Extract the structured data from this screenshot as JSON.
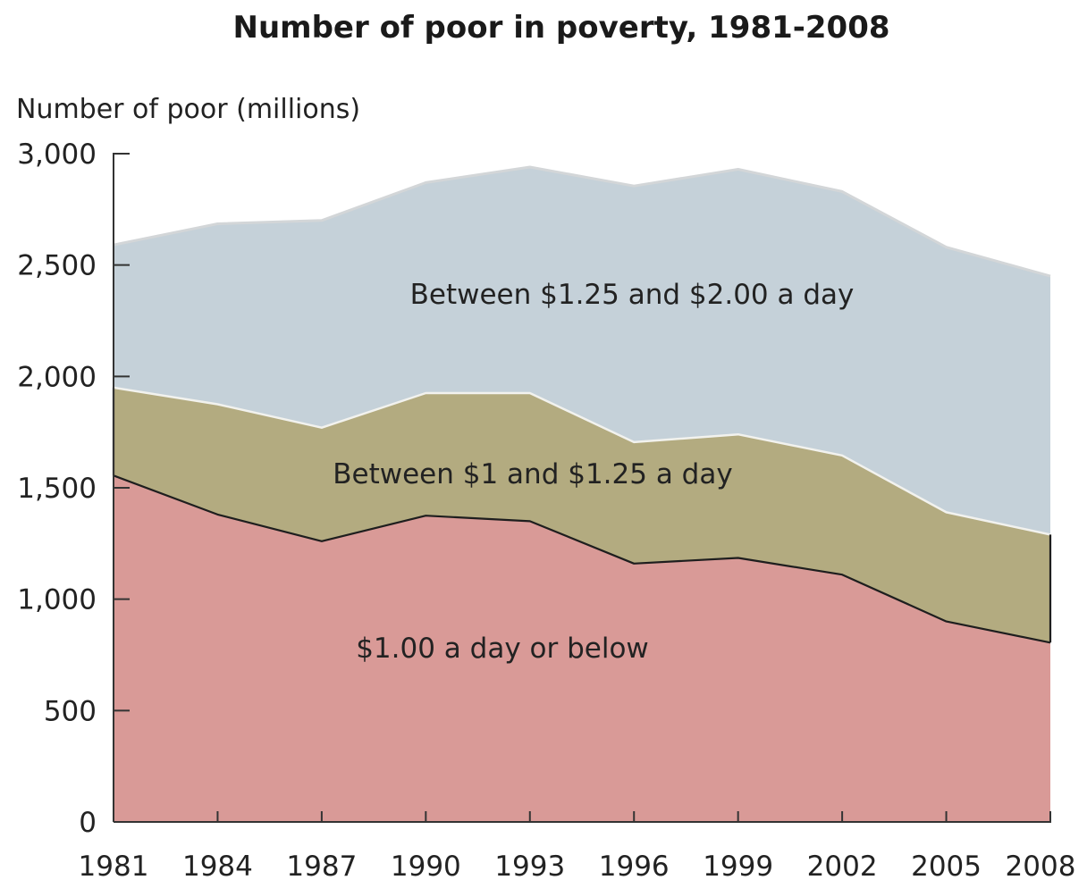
{
  "chart_data": {
    "type": "area",
    "title": "Number of poor in poverty, 1981-2008",
    "ylabel": "Number of poor (millions)",
    "xlabel": "",
    "ylim": [
      0,
      3000
    ],
    "yticks": [
      0,
      500,
      1000,
      1500,
      2000,
      2500,
      3000
    ],
    "ytick_labels": [
      "0",
      "500",
      "1,000",
      "1,500",
      "2,000",
      "2,500",
      "3,000"
    ],
    "x": [
      1981,
      1984,
      1987,
      1990,
      1993,
      1996,
      1999,
      2002,
      2005,
      2008
    ],
    "x_labels": [
      "1981",
      "1984",
      "1987",
      "1990",
      "1993",
      "1996",
      "1999",
      "2002",
      "2005",
      "2008"
    ],
    "stacked": true,
    "grid": false,
    "legend": "none",
    "series": [
      {
        "key": "le1",
        "name": "$1.00 a day or below",
        "color": "#d99a97",
        "values": [
          1555,
          1380,
          1260,
          1375,
          1350,
          1160,
          1185,
          1110,
          900,
          805
        ]
      },
      {
        "key": "b1to125",
        "name": "Between $1 and $1.25 a day",
        "color": "#b3ab80",
        "values": [
          395,
          495,
          510,
          550,
          575,
          545,
          555,
          535,
          490,
          485
        ]
      },
      {
        "key": "b125to2",
        "name": "Between $1.25 and $2.00 a day",
        "color": "#c5d1d9",
        "values": [
          640,
          810,
          930,
          945,
          1015,
          1150,
          1190,
          1185,
          1190,
          1160
        ]
      }
    ]
  }
}
